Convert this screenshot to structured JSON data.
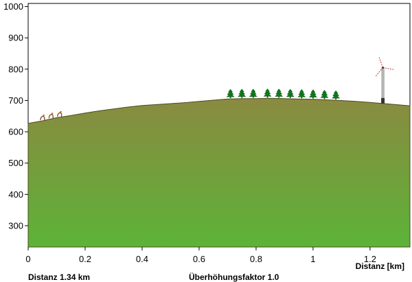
{
  "chart_data": {
    "type": "area",
    "y_ticks": [
      300,
      400,
      500,
      600,
      700,
      800,
      900,
      1000
    ],
    "x_ticks": [
      "0",
      "0.2",
      "0.4",
      "0.6",
      "0.8",
      "1",
      "1.2"
    ],
    "x_tick_values": [
      0,
      0.2,
      0.4,
      0.6,
      0.8,
      1.0,
      1.2
    ],
    "xlim": [
      0,
      1.34
    ],
    "ylim": [
      232,
      1010
    ],
    "xlabel": "Distanz [km]",
    "ylabel": "",
    "fill_colors": {
      "top": "#8a8a40",
      "bottom": "#5cb338"
    },
    "series": [
      {
        "x": [
          0,
          0.05,
          0.1,
          0.15,
          0.2,
          0.25,
          0.3,
          0.35,
          0.4,
          0.45,
          0.5,
          0.55,
          0.6,
          0.65,
          0.7,
          0.75,
          0.8,
          0.85,
          0.9,
          0.95,
          1.0,
          1.05,
          1.1,
          1.15,
          1.2,
          1.25,
          1.3,
          1.34
        ],
        "values": [
          627,
          635,
          645,
          652,
          660,
          667,
          673,
          679,
          684,
          687,
          690,
          693,
          697,
          701,
          705,
          706,
          706,
          707,
          706,
          705,
          704,
          702,
          700,
          697,
          694,
          690,
          686,
          683
        ]
      }
    ],
    "symbols": {
      "farm": {
        "icon": "hiker-icon",
        "x": [
          0.05,
          0.08,
          0.11
        ]
      },
      "trees": {
        "icon": "conifer-tree-icon",
        "x": [
          0.71,
          0.75,
          0.79,
          0.84,
          0.88,
          0.92,
          0.96,
          1.0,
          1.04,
          1.08
        ]
      },
      "wind_turbine": {
        "icon": "wind-turbine-icon",
        "x": 1.245
      }
    }
  },
  "footer": {
    "distance": "Distanz 1.34 km",
    "exaggeration": "Überhöhungsfaktor 1.0"
  }
}
